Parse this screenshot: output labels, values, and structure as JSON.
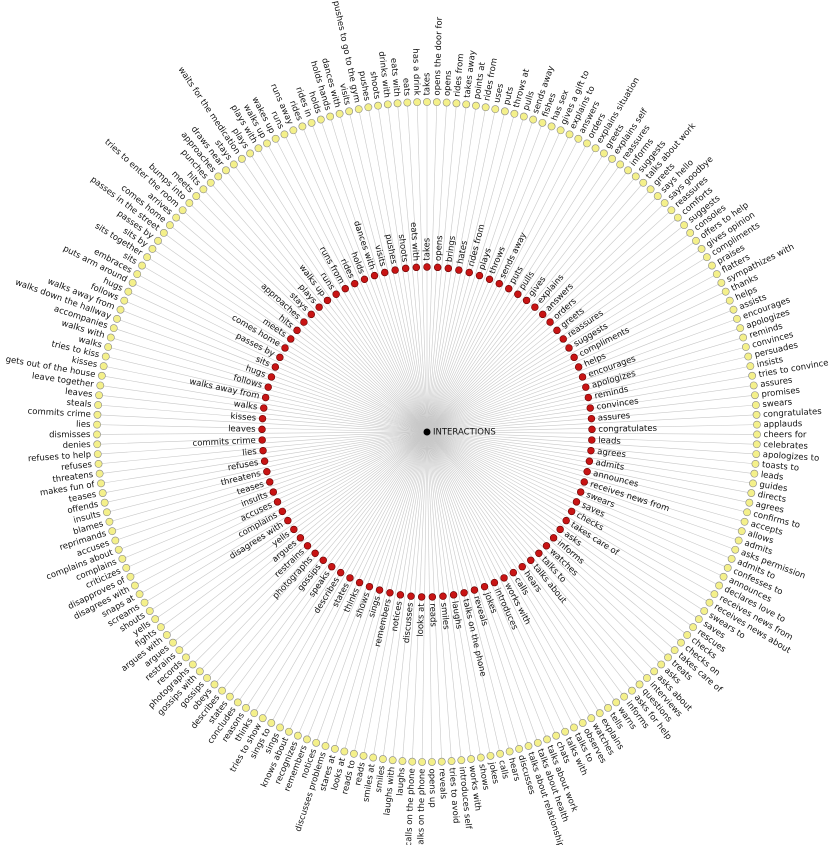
{
  "center": "INTERACTIONS",
  "inner_nodes": [
    "takes",
    "opens",
    "brings",
    "hates",
    "rides from",
    "plays",
    "throws",
    "sends away",
    "puts",
    "pulls",
    "gives",
    "explains",
    "answers",
    "orders",
    "greets",
    "reassures",
    "suggests",
    "compliments",
    "helps",
    "encourages",
    "apologizes",
    "reminds",
    "convinces",
    "assures",
    "congratulates",
    "leads",
    "agrees",
    "admits",
    "announces",
    "receives news from",
    "swears",
    "saves",
    "checks",
    "takes care of",
    "asks",
    "informs",
    "watches",
    "talks to",
    "talks about",
    "hears",
    "calls",
    "works with",
    "introduces",
    "jokes",
    "reveals",
    "talks on the phone",
    "laughs",
    "smiles",
    "reads",
    "looks at",
    "discusses",
    "notices",
    "remembers",
    "sings",
    "shows",
    "thinks",
    "states",
    "describes",
    "speaks",
    "gossips",
    "photographs",
    "restrains",
    "argues",
    "yells",
    "disagrees with",
    "complains",
    "accuses",
    "insults",
    "teases",
    "threatens",
    "refuses",
    "lies",
    "commits crime",
    "leaves",
    "kisses",
    "walks",
    "walks away from",
    "follows",
    "hugs",
    "sits",
    "passes by",
    "comes home",
    "meets",
    "hits",
    "approaches",
    "stays",
    "plays",
    "walks up",
    "runs",
    "runs from",
    "rides",
    "holds",
    "dances with",
    "visits",
    "pushes",
    "shoots",
    "eats with"
  ],
  "outer_nodes": [
    "takes",
    "opens the door for",
    "opens",
    "rides from",
    "takes away",
    "points at",
    "rides from",
    "uses",
    "puts",
    "throws at",
    "pulls",
    "sends away",
    "fishes",
    "has sex",
    "gives a gift to",
    "explains to",
    "answers",
    "orders",
    "explains situation",
    "greets",
    "explains self",
    "reassures",
    "informs",
    "suggests",
    "talks about work",
    "greets",
    "says hello",
    "says goodbye",
    "reassures",
    "comforts",
    "suggests",
    "consoles",
    "offers to help",
    "gives opinion",
    "compliments",
    "praises",
    "flatters",
    "sympathizes with",
    "thanks",
    "helps",
    "assists",
    "encourages",
    "apologizes",
    "reminds",
    "convinces",
    "persuades",
    "insists",
    "tries to convince",
    "assures",
    "promises",
    "swears",
    "congratulates",
    "applauds",
    "cheers for",
    "celebrates",
    "apologizes to",
    "toasts to",
    "leads",
    "guides",
    "directs",
    "agrees",
    "confirms to",
    "accepts",
    "allows",
    "admits",
    "asks permission",
    "admits to",
    "confesses to",
    "announces",
    "declares love to",
    "receives news from",
    "receives news about",
    "swears to",
    "saves",
    "rescues",
    "checks",
    "checks on",
    "takes care of",
    "treats",
    "asks",
    "asks about",
    "interviews",
    "questions",
    "asks for help",
    "informs",
    "warns",
    "tells",
    "explains",
    "watches",
    "observes",
    "talks to",
    "talks with",
    "chats",
    "talks about work",
    "talks about health",
    "talks about relationships",
    "discusses",
    "hears",
    "calls",
    "jokes",
    "shows",
    "works with",
    "introduces self",
    "tries to avoid",
    "reveals",
    "opens up",
    "talks on the phone",
    "calls on the phone",
    "laughs",
    "laughs with",
    "smiles",
    "smiles at",
    "reads",
    "reads to",
    "looks at",
    "stares at",
    "discusses problems",
    "notices",
    "remembers",
    "recognizes",
    "knows about",
    "sings",
    "sings to",
    "tries to show",
    "thinks",
    "reasons",
    "concludes",
    "states",
    "describes",
    "obeys",
    "gossips",
    "gossips with",
    "photographs",
    "records",
    "restrains",
    "argues",
    "argues with",
    "fights",
    "yells",
    "shouts",
    "screams",
    "snaps at",
    "disagrees with",
    "disapproves of",
    "criticizes",
    "complains",
    "complains about",
    "accuses",
    "reprimands",
    "blames",
    "insults",
    "offends",
    "teases",
    "makes fun of",
    "threatens",
    "refuses",
    "refuses to help",
    "denies",
    "dismisses",
    "lies",
    "commits crime",
    "steals",
    "leaves",
    "leave together",
    "gets out of the house",
    "kisses",
    "tries to kiss",
    "walks",
    "walks with",
    "accompanies",
    "walks down the hallway",
    "walks away from",
    "follows",
    "hugs",
    "puts arm around",
    "embraces",
    "sits",
    "sits together",
    "sits by",
    "passes by",
    "passes in the street",
    "comes home",
    "arrives",
    "tries to enter the room",
    "bumps into",
    "meets",
    "hits",
    "punches",
    "approaches",
    "draws near",
    "stays",
    "waits for the medication",
    "plays",
    "plays with",
    "walks up",
    "wakes up",
    "runs",
    "runs away",
    "rides",
    "rides in",
    "holds",
    "holds hands",
    "dances with",
    "visits",
    "pushes to go to the gym",
    "pushes",
    "shoots",
    "drinks with",
    "eats with",
    "eats",
    "has a drink"
  ]
}
